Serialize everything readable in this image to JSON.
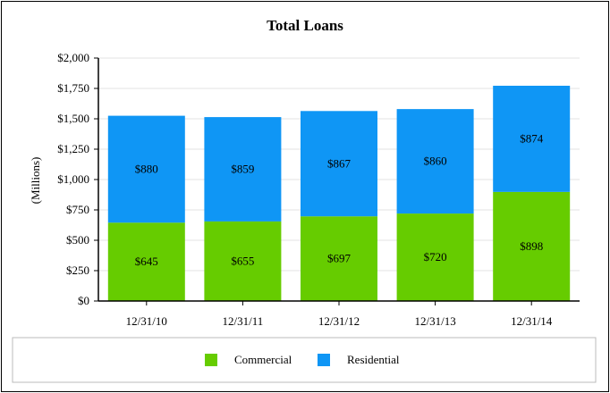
{
  "chart_data": {
    "type": "bar",
    "stacked": true,
    "title": "Total Loans",
    "ylabel": "(Millions)",
    "xlabel": "",
    "categories": [
      "12/31/10",
      "12/31/11",
      "12/31/12",
      "12/31/13",
      "12/31/14"
    ],
    "series": [
      {
        "name": "Commercial",
        "values": [
          645,
          655,
          697,
          720,
          898
        ],
        "labels": [
          "$645",
          "$655",
          "$697",
          "$720",
          "$898"
        ],
        "color": "#66cc00"
      },
      {
        "name": "Residential",
        "values": [
          880,
          859,
          867,
          860,
          874
        ],
        "labels": [
          "$880",
          "$859",
          "$867",
          "$860",
          "$874"
        ],
        "color": "#0f96f5"
      }
    ],
    "ylim": [
      0,
      2000
    ],
    "yticks": [
      0,
      250,
      500,
      750,
      1000,
      1250,
      1500,
      1750,
      2000
    ],
    "ytick_labels": [
      "$0",
      "$250",
      "$500",
      "$750",
      "$1,000",
      "$1,250",
      "$1,500",
      "$1,750",
      "$2,000"
    ],
    "grid": true,
    "legend_position": "bottom"
  }
}
